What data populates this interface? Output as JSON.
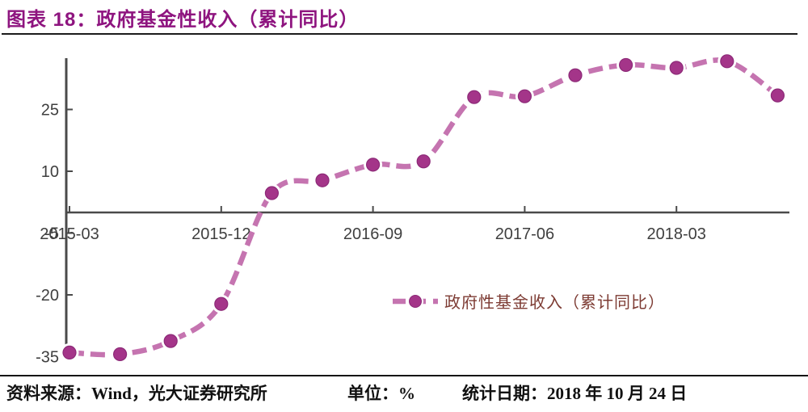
{
  "header": {
    "title": "图表 18：政府基金性收入（累计同比）"
  },
  "legend": {
    "label": "政府性基金收入（累计同比）"
  },
  "footer": {
    "source": "资料来源：Wind，光大证券研究所",
    "unit": "单位：%",
    "stat_date": "统计日期：2018 年 10 月 24 日"
  },
  "chart_data": {
    "type": "line",
    "title": "政府基金性收入（累计同比）",
    "unit": "%",
    "x": [
      "2015-03",
      "2015-06",
      "2015-09",
      "2015-12",
      "2016-03",
      "2016-06",
      "2016-09",
      "2016-12",
      "2017-03",
      "2017-06",
      "2017-09",
      "2017-12",
      "2018-03",
      "2018-06",
      "2018-09"
    ],
    "series": [
      {
        "name": "政府性基金收入（累计同比）",
        "values": [
          -34,
          -34.4,
          -31.2,
          -22.2,
          4.7,
          7.8,
          11.6,
          12.4,
          28,
          28.2,
          33.3,
          35.8,
          35.1,
          36.7,
          28.4
        ]
      }
    ],
    "x_tick_labels": [
      "2015-03",
      "2015-12",
      "2016-09",
      "2017-06",
      "2018-03"
    ],
    "y_ticks": [
      25,
      10,
      -5,
      -20,
      -35
    ],
    "ylim": [
      -35,
      37.5
    ],
    "line_style": "dashed, smoothed",
    "marker": "circle",
    "grid": false,
    "legend_position": "inside lower-right",
    "colors": {
      "line": "#C574B0",
      "marker": "#A43589",
      "marker_edge": "#8C2977",
      "axis": "#4a4a4a",
      "tick_text": "#3f3f3f",
      "title_text": "#8E147F",
      "legend_text": "#7D3B33"
    }
  }
}
